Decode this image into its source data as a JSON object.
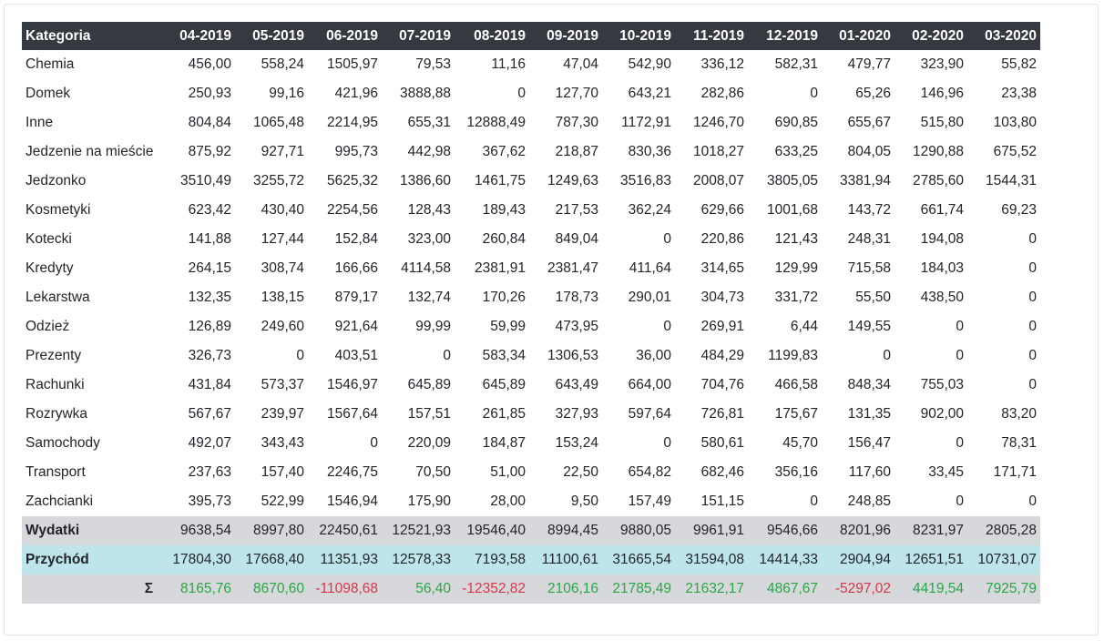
{
  "table": {
    "category_header": "Kategoria",
    "months": [
      "04-2019",
      "05-2019",
      "06-2019",
      "07-2019",
      "08-2019",
      "09-2019",
      "10-2019",
      "11-2019",
      "12-2019",
      "01-2020",
      "02-2020",
      "03-2020"
    ],
    "rows": [
      {
        "category": "Chemia",
        "values": [
          "456,00",
          "558,24",
          "1505,97",
          "79,53",
          "11,16",
          "47,04",
          "542,90",
          "336,12",
          "582,31",
          "479,77",
          "323,90",
          "55,82"
        ]
      },
      {
        "category": "Domek",
        "values": [
          "250,93",
          "99,16",
          "421,96",
          "3888,88",
          "0",
          "127,70",
          "643,21",
          "282,86",
          "0",
          "65,26",
          "146,96",
          "23,38"
        ]
      },
      {
        "category": "Inne",
        "values": [
          "804,84",
          "1065,48",
          "2214,95",
          "655,31",
          "12888,49",
          "787,30",
          "1172,91",
          "1246,70",
          "690,85",
          "655,67",
          "515,80",
          "103,80"
        ]
      },
      {
        "category": "Jedzenie na mieście",
        "values": [
          "875,92",
          "927,71",
          "995,73",
          "442,98",
          "367,62",
          "218,87",
          "830,36",
          "1018,27",
          "633,25",
          "804,05",
          "1290,88",
          "675,52"
        ]
      },
      {
        "category": "Jedzonko",
        "values": [
          "3510,49",
          "3255,72",
          "5625,32",
          "1386,60",
          "1461,75",
          "1249,63",
          "3516,83",
          "2008,07",
          "3805,05",
          "3381,94",
          "2785,60",
          "1544,31"
        ]
      },
      {
        "category": "Kosmetyki",
        "values": [
          "623,42",
          "430,40",
          "2254,56",
          "128,43",
          "189,43",
          "217,53",
          "362,24",
          "629,66",
          "1001,68",
          "143,72",
          "661,74",
          "69,23"
        ]
      },
      {
        "category": "Kotecki",
        "values": [
          "141,88",
          "127,44",
          "152,84",
          "323,00",
          "260,84",
          "849,04",
          "0",
          "220,86",
          "121,43",
          "248,31",
          "194,08",
          "0"
        ]
      },
      {
        "category": "Kredyty",
        "values": [
          "264,15",
          "308,74",
          "166,66",
          "4114,58",
          "2381,91",
          "2381,47",
          "411,64",
          "314,65",
          "129,99",
          "715,58",
          "184,03",
          "0"
        ]
      },
      {
        "category": "Lekarstwa",
        "values": [
          "132,35",
          "138,15",
          "879,17",
          "132,74",
          "170,26",
          "178,73",
          "290,01",
          "304,73",
          "331,72",
          "55,50",
          "438,50",
          "0"
        ]
      },
      {
        "category": "Odzież",
        "values": [
          "126,89",
          "249,60",
          "921,64",
          "99,99",
          "59,99",
          "473,95",
          "0",
          "269,91",
          "6,44",
          "149,55",
          "0",
          "0"
        ]
      },
      {
        "category": "Prezenty",
        "values": [
          "326,73",
          "0",
          "403,51",
          "0",
          "583,34",
          "1306,53",
          "36,00",
          "484,29",
          "1199,83",
          "0",
          "0",
          "0"
        ]
      },
      {
        "category": "Rachunki",
        "values": [
          "431,84",
          "573,37",
          "1546,97",
          "645,89",
          "645,89",
          "643,49",
          "664,00",
          "704,76",
          "466,58",
          "848,34",
          "755,03",
          "0"
        ]
      },
      {
        "category": "Rozrywka",
        "values": [
          "567,67",
          "239,97",
          "1567,64",
          "157,51",
          "261,85",
          "327,93",
          "597,64",
          "726,81",
          "175,67",
          "131,35",
          "902,00",
          "83,20"
        ]
      },
      {
        "category": "Samochody",
        "values": [
          "492,07",
          "343,43",
          "0",
          "220,09",
          "184,87",
          "153,24",
          "0",
          "580,61",
          "45,70",
          "156,47",
          "0",
          "78,31"
        ]
      },
      {
        "category": "Transport",
        "values": [
          "237,63",
          "157,40",
          "2246,75",
          "70,50",
          "51,00",
          "22,50",
          "654,82",
          "682,46",
          "356,16",
          "117,60",
          "33,45",
          "171,71"
        ]
      },
      {
        "category": "Zachcianki",
        "values": [
          "395,73",
          "522,99",
          "1546,94",
          "175,90",
          "28,00",
          "9,50",
          "157,49",
          "151,15",
          "0",
          "248,85",
          "0",
          "0"
        ]
      }
    ],
    "expenses": {
      "label": "Wydatki",
      "values": [
        "9638,54",
        "8997,80",
        "22450,61",
        "12521,93",
        "19546,40",
        "8994,45",
        "9880,05",
        "9961,91",
        "9546,66",
        "8201,96",
        "8231,97",
        "2805,28"
      ]
    },
    "income": {
      "label": "Przychód",
      "values": [
        "17804,30",
        "17668,40",
        "11351,93",
        "12578,33",
        "7193,58",
        "11100,61",
        "31665,54",
        "31594,08",
        "14414,33",
        "2904,94",
        "12651,51",
        "10731,07"
      ]
    },
    "balance": {
      "label": "Σ",
      "values": [
        "8165,76",
        "8670,60",
        "-11098,68",
        "56,40",
        "-12352,82",
        "2106,16",
        "21785,49",
        "21632,17",
        "4867,67",
        "-5297,02",
        "4419,54",
        "7925,79"
      ]
    }
  },
  "colors": {
    "header_bg": "#343a40",
    "expenses_bg": "#d6d8db",
    "income_bg": "#bee5eb",
    "positive": "#28a745",
    "negative": "#dc3545"
  }
}
